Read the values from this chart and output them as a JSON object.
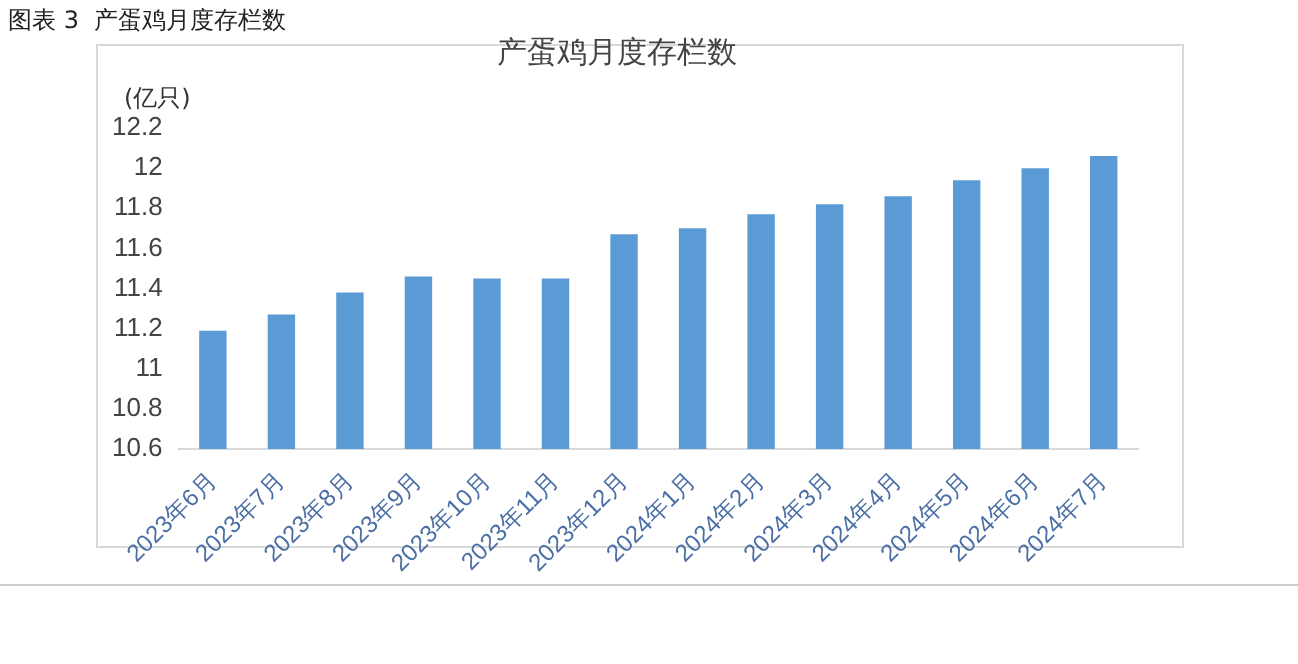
{
  "chart_data": {
    "type": "bar",
    "title": "产蛋鸡月度存栏数",
    "ylabel": "(亿只)",
    "annotations": [
      "图表 3  产蛋鸡月度存栏数"
    ],
    "categories": [
      "2023年6月",
      "2023年7月",
      "2023年8月",
      "2023年9月",
      "2023年10月",
      "2023年11月",
      "2023年12月",
      "2024年1月",
      "2024年2月",
      "2024年3月",
      "2024年4月",
      "2024年5月",
      "2024年6月",
      "2024年7月"
    ],
    "values": [
      11.19,
      11.27,
      11.38,
      11.46,
      11.45,
      11.45,
      11.67,
      11.7,
      11.77,
      11.82,
      11.86,
      11.94,
      12.0,
      12.06
    ],
    "color": "#5b9bd5",
    "ylim": [
      10.6,
      12.2
    ],
    "yticks": [
      10.6,
      10.8,
      11,
      11.2,
      11.4,
      11.6,
      11.8,
      12,
      12.2
    ],
    "grid": false,
    "legend": false
  }
}
